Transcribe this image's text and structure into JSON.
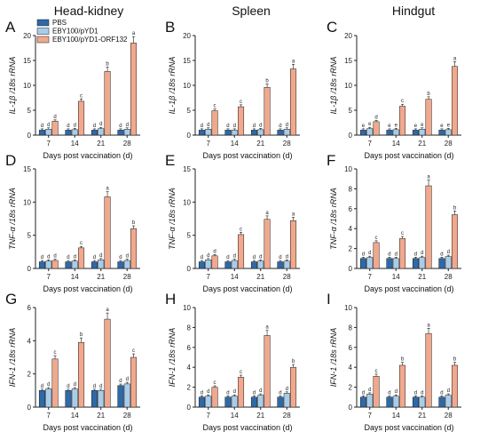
{
  "colors": {
    "pbs": "#2e69a8",
    "eby": "#a9cde9",
    "orf": "#f0a98e",
    "axis": "#222222"
  },
  "legend": [
    "PBS",
    "EBY100/pYD1",
    "EBY100/pYD1-ORF132"
  ],
  "column_titles": [
    "Head-kidney",
    "Spleen",
    "Hindgut"
  ],
  "chart_data": [
    {
      "letter": "A",
      "type": "bar",
      "xlabel": "Days post vaccination (d)",
      "ylabel": "IL-1β /18s rRNA",
      "ylim": [
        0,
        20
      ],
      "yticks": [
        "0",
        "5",
        "10",
        "15",
        "20"
      ],
      "categories": [
        "7",
        "14",
        "21",
        "28"
      ],
      "series": [
        {
          "name": "PBS",
          "values": [
            1.0,
            1.0,
            1.0,
            1.0
          ],
          "sig": [
            "d",
            "d",
            "d",
            "d"
          ]
        },
        {
          "name": "EBY100/pYD1",
          "values": [
            1.2,
            1.1,
            1.3,
            1.2
          ],
          "sig": [
            "d",
            "d",
            "d",
            "d"
          ]
        },
        {
          "name": "EBY100/pYD1-ORF132",
          "values": [
            2.8,
            6.8,
            12.8,
            18.5
          ],
          "sig": [
            "d",
            "c",
            "b",
            "a"
          ]
        }
      ]
    },
    {
      "letter": "B",
      "type": "bar",
      "xlabel": "Days post vaccination (d)",
      "ylabel": "IL-1β /18s rRNA",
      "ylim": [
        0,
        20
      ],
      "yticks": [
        "0",
        "5",
        "10",
        "15",
        "20"
      ],
      "categories": [
        "7",
        "14",
        "21",
        "28"
      ],
      "series": [
        {
          "name": "PBS",
          "values": [
            1.0,
            1.0,
            1.0,
            1.0
          ],
          "sig": [
            "d",
            "d",
            "d",
            "d"
          ]
        },
        {
          "name": "EBY100/pYD1",
          "values": [
            1.2,
            1.0,
            1.1,
            1.2
          ],
          "sig": [
            "d",
            "d",
            "d",
            "d"
          ]
        },
        {
          "name": "EBY100/pYD1-ORF132",
          "values": [
            4.9,
            5.7,
            9.6,
            13.3
          ],
          "sig": [
            "c",
            "c",
            "b",
            "a"
          ]
        }
      ]
    },
    {
      "letter": "C",
      "type": "bar",
      "xlabel": "Days post vaccination (d)",
      "ylabel": "IL-1β /18s rRNA",
      "ylim": [
        0,
        20
      ],
      "yticks": [
        "0",
        "5",
        "10",
        "15",
        "20"
      ],
      "categories": [
        "7",
        "14",
        "21",
        "28"
      ],
      "series": [
        {
          "name": "PBS",
          "values": [
            1.0,
            1.0,
            1.0,
            1.0
          ],
          "sig": [
            "e",
            "e",
            "e",
            "e"
          ]
        },
        {
          "name": "EBY100/pYD1",
          "values": [
            1.3,
            1.1,
            1.2,
            1.1
          ],
          "sig": [
            "e",
            "e",
            "e",
            "e"
          ]
        },
        {
          "name": "EBY100/pYD1-ORF132",
          "values": [
            2.7,
            5.8,
            7.2,
            13.8
          ],
          "sig": [
            "d",
            "c",
            "b",
            "a"
          ]
        }
      ]
    },
    {
      "letter": "D",
      "type": "bar",
      "xlabel": "Days post vaccination (d)",
      "ylabel": "TNF-α /18s rRNA",
      "ylim": [
        0,
        15
      ],
      "yticks": [
        "0",
        "5",
        "10",
        "15"
      ],
      "categories": [
        "7",
        "14",
        "21",
        "28"
      ],
      "series": [
        {
          "name": "PBS",
          "values": [
            1.0,
            1.0,
            1.0,
            1.0
          ],
          "sig": [
            "d",
            "d",
            "d",
            "d"
          ]
        },
        {
          "name": "EBY100/pYD1",
          "values": [
            1.1,
            1.1,
            1.3,
            1.2
          ],
          "sig": [
            "d",
            "d",
            "d",
            "d"
          ]
        },
        {
          "name": "EBY100/pYD1-ORF132",
          "values": [
            1.2,
            3.1,
            10.8,
            6.0
          ],
          "sig": [
            "d",
            "c",
            "a",
            "b"
          ]
        }
      ]
    },
    {
      "letter": "E",
      "type": "bar",
      "xlabel": "Days post vaccination (d)",
      "ylabel": "TNF-α /18s rRNA",
      "ylim": [
        0,
        15
      ],
      "yticks": [
        "0",
        "5",
        "10",
        "15"
      ],
      "categories": [
        "7",
        "14",
        "21",
        "28"
      ],
      "series": [
        {
          "name": "PBS",
          "values": [
            1.0,
            1.0,
            1.0,
            1.0
          ],
          "sig": [
            "d",
            "d",
            "d",
            "d"
          ]
        },
        {
          "name": "EBY100/pYD1",
          "values": [
            1.3,
            1.2,
            1.1,
            1.1
          ],
          "sig": [
            "d",
            "d",
            "d",
            "d"
          ]
        },
        {
          "name": "EBY100/pYD1-ORF132",
          "values": [
            1.9,
            5.1,
            7.4,
            7.2
          ],
          "sig": [
            "d",
            "c",
            "a",
            "a"
          ]
        }
      ]
    },
    {
      "letter": "F",
      "type": "bar",
      "xlabel": "Days post vaccination (d)",
      "ylabel": "TNF-α /18s rRNA",
      "ylim": [
        0,
        10
      ],
      "yticks": [
        "0",
        "2",
        "4",
        "6",
        "8",
        "10"
      ],
      "categories": [
        "7",
        "14",
        "21",
        "28"
      ],
      "series": [
        {
          "name": "PBS",
          "values": [
            1.0,
            1.0,
            1.0,
            1.0
          ],
          "sig": [
            "d",
            "d",
            "d",
            "d"
          ]
        },
        {
          "name": "EBY100/pYD1",
          "values": [
            1.1,
            1.0,
            1.1,
            1.2
          ],
          "sig": [
            "d",
            "d",
            "d",
            "d"
          ]
        },
        {
          "name": "EBY100/pYD1-ORF132",
          "values": [
            2.6,
            3.0,
            8.3,
            5.4
          ],
          "sig": [
            "c",
            "c",
            "a",
            "b"
          ]
        }
      ]
    },
    {
      "letter": "G",
      "type": "bar",
      "xlabel": "Days post vaccination (d)",
      "ylabel": "IFN-1 /18s rRNA",
      "ylim": [
        0,
        6
      ],
      "yticks": [
        "0",
        "2",
        "4",
        "6"
      ],
      "categories": [
        "7",
        "14",
        "21",
        "28"
      ],
      "series": [
        {
          "name": "PBS",
          "values": [
            1.0,
            1.0,
            1.0,
            1.3
          ],
          "sig": [
            "d",
            "d",
            "d",
            "d"
          ]
        },
        {
          "name": "EBY100/pYD1",
          "values": [
            1.1,
            1.1,
            1.0,
            1.4
          ],
          "sig": [
            "d",
            "d",
            "d",
            "d"
          ]
        },
        {
          "name": "EBY100/pYD1-ORF132",
          "values": [
            2.9,
            3.9,
            5.3,
            3.0
          ],
          "sig": [
            "c",
            "b",
            "a",
            "c"
          ]
        }
      ]
    },
    {
      "letter": "H",
      "type": "bar",
      "xlabel": "Days post vaccination (d)",
      "ylabel": "IFN-1 /18s rRNA",
      "ylim": [
        0,
        10
      ],
      "yticks": [
        "0",
        "2",
        "4",
        "6",
        "8",
        "10"
      ],
      "categories": [
        "7",
        "14",
        "21",
        "28"
      ],
      "series": [
        {
          "name": "PBS",
          "values": [
            1.0,
            1.0,
            1.0,
            1.0
          ],
          "sig": [
            "d",
            "d",
            "d",
            "d"
          ]
        },
        {
          "name": "EBY100/pYD1",
          "values": [
            1.1,
            1.1,
            1.2,
            1.4
          ],
          "sig": [
            "d",
            "d",
            "d",
            "d"
          ]
        },
        {
          "name": "EBY100/pYD1-ORF132",
          "values": [
            2.0,
            3.0,
            7.2,
            4.0
          ],
          "sig": [
            "c",
            "c",
            "a",
            "b"
          ]
        }
      ]
    },
    {
      "letter": "I",
      "type": "bar",
      "xlabel": "Days post vaccination (d)",
      "ylabel": "IFN-1 /18s rRNA",
      "ylim": [
        0,
        10
      ],
      "yticks": [
        "0",
        "2",
        "4",
        "6",
        "8",
        "10"
      ],
      "categories": [
        "7",
        "14",
        "21",
        "28"
      ],
      "series": [
        {
          "name": "PBS",
          "values": [
            1.0,
            1.0,
            1.0,
            1.0
          ],
          "sig": [
            "d",
            "d",
            "d",
            "d"
          ]
        },
        {
          "name": "EBY100/pYD1",
          "values": [
            1.3,
            1.1,
            1.0,
            1.2
          ],
          "sig": [
            "d",
            "d",
            "d",
            "d"
          ]
        },
        {
          "name": "EBY100/pYD1-ORF132",
          "values": [
            3.1,
            4.2,
            7.4,
            4.2
          ],
          "sig": [
            "c",
            "b",
            "a",
            "b"
          ]
        }
      ]
    }
  ]
}
